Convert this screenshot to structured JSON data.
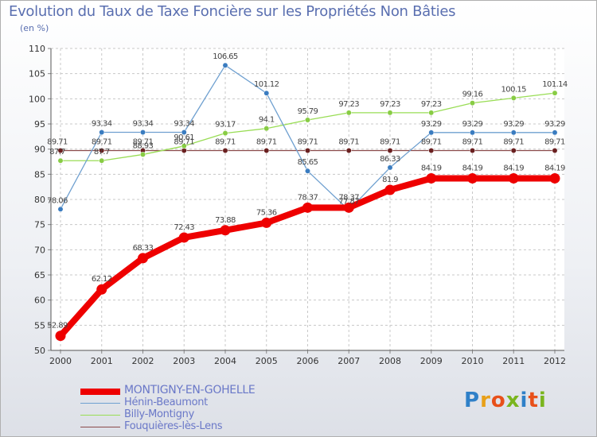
{
  "title": "Evolution du Taux de Taxe Foncière sur les Propriétés Non Bâties",
  "subtitle": "(en %)",
  "logo": {
    "text": "Proxiti",
    "letter_colors": [
      "#2f80c8",
      "#e8a019",
      "#e8501a",
      "#7ab51e",
      "#2f80c8",
      "#e8501a",
      "#7ab51e"
    ]
  },
  "chart_data": {
    "type": "line",
    "title": "Evolution du Taux de Taxe Foncière sur les Propriétés Non Bâties",
    "ylabel": "(en %)",
    "xlabel": "",
    "ylim": [
      50,
      110
    ],
    "yticks": [
      50,
      55,
      60,
      65,
      70,
      75,
      80,
      85,
      90,
      95,
      100,
      105,
      110
    ],
    "grid": true,
    "categories": [
      "2000",
      "2001",
      "2002",
      "2003",
      "2004",
      "2005",
      "2006",
      "2007",
      "2008",
      "2009",
      "2010",
      "2011",
      "2012"
    ],
    "series": [
      {
        "name": "MONTIGNY-EN-GOHELLE",
        "color": "#ee0000",
        "values": [
          52.89,
          62.12,
          68.33,
          72.43,
          73.88,
          75.36,
          78.37,
          78.37,
          81.9,
          84.19,
          84.19,
          84.19,
          84.19
        ],
        "labels": [
          "52.89",
          "62.12",
          "68.33",
          "72.43",
          "73.88",
          "75.36",
          "78.37",
          "78.37",
          "81.9",
          "84.19",
          "84.19",
          "84.19",
          "84.19"
        ]
      },
      {
        "name": "Hénin-Beaumont",
        "color": "#6fa0d0",
        "values": [
          78.06,
          93.34,
          93.34,
          93.34,
          106.65,
          101.12,
          85.65,
          77.87,
          86.33,
          93.29,
          93.29,
          93.29,
          93.29
        ],
        "labels": [
          "78.06",
          "93.34",
          "93.34",
          "93.34",
          "106.65",
          "101.12",
          "85.65",
          "77.87",
          "86.33",
          "93.29",
          "93.29",
          "93.29",
          "93.29"
        ]
      },
      {
        "name": "Billy-Montigny",
        "color": "#99dd55",
        "values": [
          87.7,
          87.7,
          88.93,
          90.61,
          93.17,
          94.1,
          95.79,
          97.23,
          97.23,
          97.23,
          99.16,
          100.15,
          101.14
        ],
        "labels": [
          "87.7",
          "87.7",
          "88.93",
          "90.61",
          "93.17",
          "94.1",
          "95.79",
          "97.23",
          "97.23",
          "97.23",
          "99.16",
          "100.15",
          "101.14"
        ]
      },
      {
        "name": "Fouquières-lès-Lens",
        "color": "#8a4a4a",
        "values": [
          89.71,
          89.71,
          89.71,
          89.71,
          89.71,
          89.71,
          89.71,
          89.71,
          89.71,
          89.71,
          89.71,
          89.71,
          89.71
        ],
        "labels": [
          "89.71",
          "89.71",
          "89.71",
          "89.71",
          "89.71",
          "89.71",
          "89.71",
          "89.71",
          "89.71",
          "89.71",
          "89.71",
          "89.71",
          "89.71"
        ]
      }
    ]
  }
}
